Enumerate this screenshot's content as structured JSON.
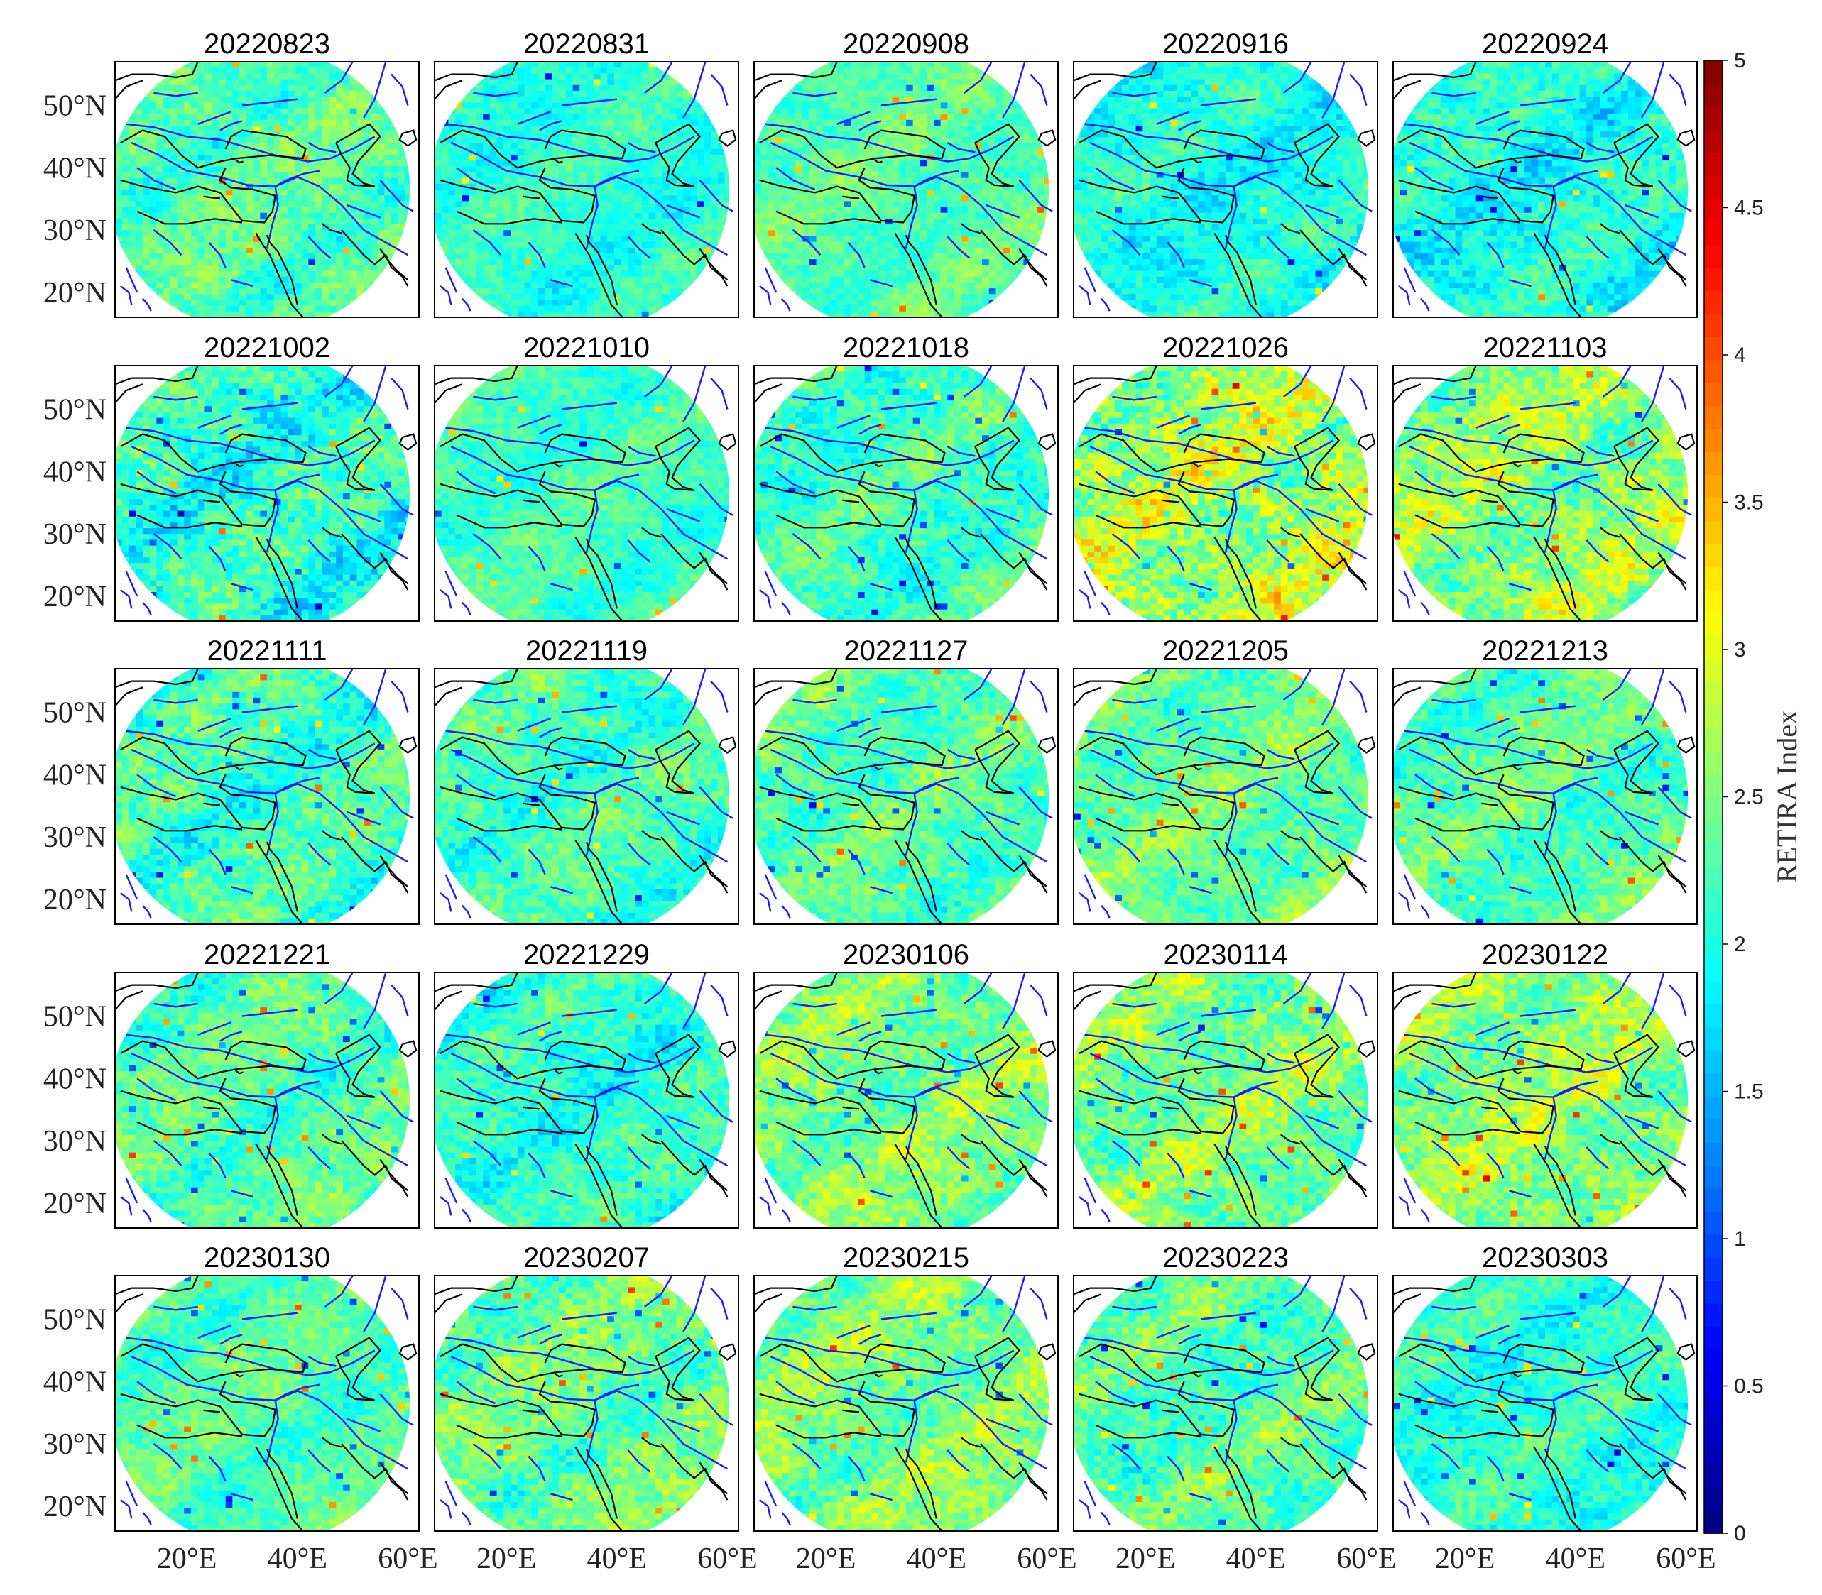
{
  "figure": {
    "colormap": "jet",
    "colorbar": {
      "label": "RETIRA Index",
      "min": 0,
      "max": 5,
      "ticks": [
        "0",
        "0.5",
        "1",
        "1.5",
        "2",
        "2.5",
        "3",
        "3.5",
        "4",
        "4.5",
        "5"
      ]
    },
    "axes": {
      "lat_ticks": [
        "20°N",
        "30°N",
        "40°N",
        "50°N"
      ],
      "lon_ticks": [
        "20°E",
        "40°E",
        "60°E"
      ],
      "lat_values": [
        20,
        30,
        40,
        50
      ],
      "lon_values": [
        20,
        40,
        60
      ],
      "lon_range": [
        7,
        62
      ],
      "lat_range": [
        16,
        57
      ]
    },
    "overlays": {
      "coastline_color": "#000000",
      "fault_color": "#1a1aff",
      "outside_color": "#ffffff"
    },
    "panels": [
      {
        "date": "20220823",
        "mean": 2.3,
        "spread": 0.45
      },
      {
        "date": "20220831",
        "mean": 2.1,
        "spread": 0.35
      },
      {
        "date": "20220908",
        "mean": 2.3,
        "spread": 0.35
      },
      {
        "date": "20220916",
        "mean": 2.0,
        "spread": 0.4
      },
      {
        "date": "20220924",
        "mean": 2.0,
        "spread": 0.45
      },
      {
        "date": "20221002",
        "mean": 2.1,
        "spread": 0.55
      },
      {
        "date": "20221010",
        "mean": 2.2,
        "spread": 0.35
      },
      {
        "date": "20221018",
        "mean": 2.2,
        "spread": 0.45
      },
      {
        "date": "20221026",
        "mean": 2.7,
        "spread": 0.7
      },
      {
        "date": "20221103",
        "mean": 2.6,
        "spread": 0.6
      },
      {
        "date": "20221111",
        "mean": 2.2,
        "spread": 0.5
      },
      {
        "date": "20221119",
        "mean": 2.2,
        "spread": 0.45
      },
      {
        "date": "20221127",
        "mean": 2.3,
        "spread": 0.45
      },
      {
        "date": "20221205",
        "mean": 2.4,
        "spread": 0.45
      },
      {
        "date": "20221213",
        "mean": 2.3,
        "spread": 0.45
      },
      {
        "date": "20221221",
        "mean": 2.3,
        "spread": 0.45
      },
      {
        "date": "20221229",
        "mean": 2.1,
        "spread": 0.45
      },
      {
        "date": "20230106",
        "mean": 2.5,
        "spread": 0.5
      },
      {
        "date": "20230114",
        "mean": 2.5,
        "spread": 0.55
      },
      {
        "date": "20230122",
        "mean": 2.6,
        "spread": 0.55
      },
      {
        "date": "20230130",
        "mean": 2.3,
        "spread": 0.4
      },
      {
        "date": "20230207",
        "mean": 2.4,
        "spread": 0.5
      },
      {
        "date": "20230215",
        "mean": 2.5,
        "spread": 0.5
      },
      {
        "date": "20230223",
        "mean": 2.3,
        "spread": 0.5
      },
      {
        "date": "20230303",
        "mean": 2.1,
        "spread": 0.4
      }
    ]
  }
}
